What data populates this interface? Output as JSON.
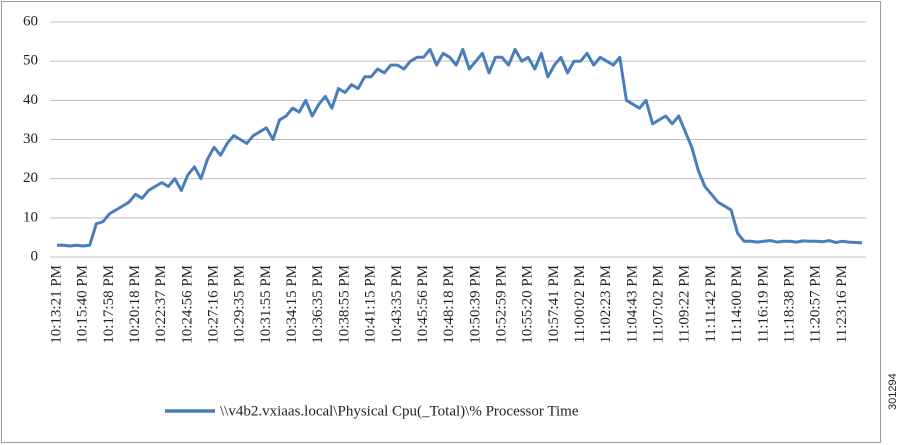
{
  "chart_data": {
    "type": "line",
    "categories": [
      "10:13:21 PM",
      null,
      null,
      null,
      "10:15:40 PM",
      null,
      null,
      null,
      "10:17:58 PM",
      null,
      null,
      null,
      "10:20:18 PM",
      null,
      null,
      null,
      "10:22:37 PM",
      null,
      null,
      null,
      "10:24:56 PM",
      null,
      null,
      null,
      "10:27:16 PM",
      null,
      null,
      null,
      "10:29:35 PM",
      null,
      null,
      null,
      "10:31:55 PM",
      null,
      null,
      null,
      "10:34:15 PM",
      null,
      null,
      null,
      "10:36:35 PM",
      null,
      null,
      null,
      "10:38:55 PM",
      null,
      null,
      null,
      "10:41:15 PM",
      null,
      null,
      null,
      "10:43:35 PM",
      null,
      null,
      null,
      "10:45:56 PM",
      null,
      null,
      null,
      "10:48:18 PM",
      null,
      null,
      null,
      "10:50:39 PM",
      null,
      null,
      null,
      "10:52:59 PM",
      null,
      null,
      null,
      "10:55:20 PM",
      null,
      null,
      null,
      "10:57:41 PM",
      null,
      null,
      null,
      "11:00:02 PM",
      null,
      null,
      null,
      "11:02:23 PM",
      null,
      null,
      null,
      "11:04:43 PM",
      null,
      null,
      null,
      "11:07:02 PM",
      null,
      null,
      null,
      "11:09:22 PM",
      null,
      null,
      null,
      "11:11:42 PM",
      null,
      null,
      null,
      "11:14:00 PM",
      null,
      null,
      null,
      "11:16:19 PM",
      null,
      null,
      null,
      "11:18:38 PM",
      null,
      null,
      null,
      "11:20:57 PM",
      null,
      null,
      null,
      "11:23:16 PM",
      null,
      null,
      null
    ],
    "series": [
      {
        "name": "\\\\v4b2.vxiaas.local\\Physical Cpu(_Total)\\% Processor Time",
        "color": "#4a7ebb",
        "values": [
          3,
          3,
          2.8,
          3,
          2.8,
          3,
          8.5,
          9,
          11,
          12,
          13,
          14,
          16,
          15,
          17,
          18,
          19,
          18,
          20,
          17,
          21,
          23,
          20,
          25,
          28,
          26,
          29,
          31,
          30,
          29,
          31,
          32,
          33,
          30,
          35,
          36,
          38,
          37,
          40,
          36,
          39,
          41,
          38,
          43,
          42,
          44,
          43,
          46,
          46,
          48,
          47,
          49,
          49,
          48,
          50,
          51,
          51,
          53,
          49,
          52,
          51,
          49,
          53,
          48,
          50,
          52,
          47,
          51,
          51,
          49,
          53,
          50,
          51,
          48,
          52,
          46,
          49,
          51,
          47,
          50,
          50,
          52,
          49,
          51,
          50,
          49,
          51,
          40,
          39,
          38,
          40,
          34,
          35,
          36,
          34,
          36,
          32,
          28,
          22,
          18,
          16,
          14,
          13,
          12,
          6,
          4,
          4,
          3.8,
          4,
          4.2,
          3.8,
          4,
          4,
          3.8,
          4.1,
          4,
          4,
          3.9,
          4.2,
          3.7,
          4,
          3.8,
          3.7,
          3.6
        ]
      }
    ],
    "ylim": [
      0,
      60
    ],
    "yticks": [
      0,
      10,
      20,
      30,
      40,
      50,
      60
    ],
    "grid": true,
    "legend": "bottom",
    "figure_id": "301294"
  }
}
